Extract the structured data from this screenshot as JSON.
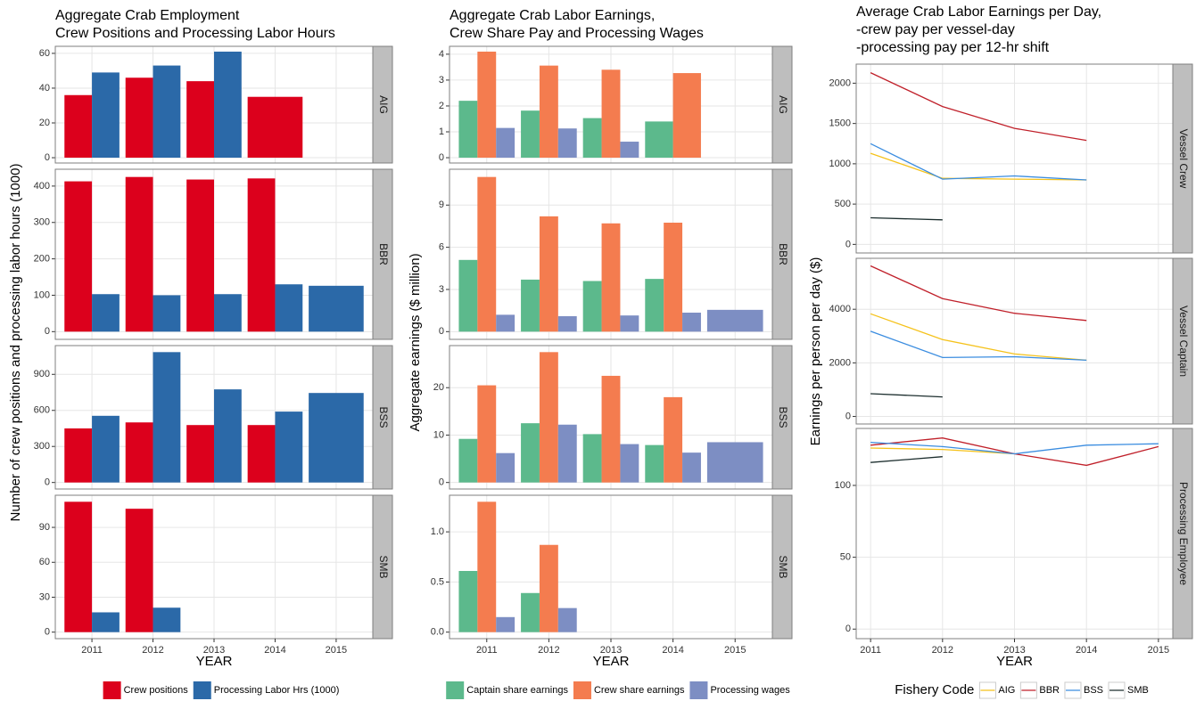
{
  "chart_data": [
    {
      "type": "bar",
      "title": [
        "Aggregate Crab Employment",
        " Crew Positions and Processing Labor Hours"
      ],
      "xlabel": "YEAR",
      "ylabel": "Number of crew positions and processing labor hours (1000)",
      "categories": [
        "2011",
        "2012",
        "2013",
        "2014",
        "2015"
      ],
      "series": [
        {
          "name": "Crew positions",
          "color": "#dc001c"
        },
        {
          "name": "Processing Labor Hrs (1000)",
          "color": "#2b69a8"
        }
      ],
      "facets": [
        {
          "label": "AIG",
          "ylim": [
            -3.05,
            64.05
          ],
          "yticks": [
            0,
            20,
            40,
            60
          ],
          "values": [
            [
              36,
              46,
              44,
              35,
              null
            ],
            [
              49,
              53,
              61,
              null,
              null
            ]
          ]
        },
        {
          "label": "BBR",
          "ylim": [
            -21.25,
            446.25
          ],
          "yticks": [
            0,
            100,
            200,
            300,
            400
          ],
          "values": [
            [
              413,
              425,
              418,
              421,
              null
            ],
            [
              103,
              100,
              103,
              130,
              126
            ]
          ]
        },
        {
          "label": "BSS",
          "ylim": [
            -54.25,
            1139.25
          ],
          "yticks": [
            0,
            300,
            600,
            900
          ],
          "values": [
            [
              450,
              500,
              478,
              478,
              null
            ],
            [
              555,
              1085,
              775,
              590,
              745
            ]
          ]
        },
        {
          "label": "SMB",
          "ylim": [
            -5.6,
            117.6
          ],
          "yticks": [
            0,
            30,
            60,
            90
          ],
          "values": [
            [
              112,
              106,
              null,
              null,
              null
            ],
            [
              17,
              21,
              null,
              null,
              null
            ]
          ]
        }
      ]
    },
    {
      "type": "bar",
      "title": [
        "Aggregate Crab Labor Earnings,",
        " Crew Share Pay and Processing Wages"
      ],
      "xlabel": "YEAR",
      "ylabel": "Aggregate earnings ($ million)",
      "categories": [
        "2011",
        "2012",
        "2013",
        "2014",
        "2015"
      ],
      "series": [
        {
          "name": "Captain share earnings",
          "color": "#5cb98c"
        },
        {
          "name": "Crew share earnings",
          "color": "#f47c4f"
        },
        {
          "name": "Processing wages",
          "color": "#7d8ec3"
        }
      ],
      "facets": [
        {
          "label": "AIG",
          "ylim": [
            -0.205,
            4.305
          ],
          "yticks": [
            0,
            1,
            2,
            3,
            4
          ],
          "values": [
            [
              2.2,
              1.82,
              1.53,
              1.4,
              null
            ],
            [
              4.1,
              3.56,
              3.4,
              3.27,
              null
            ],
            [
              1.15,
              1.13,
              0.62,
              null,
              null
            ]
          ]
        },
        {
          "label": "BBR",
          "ylim": [
            -0.55,
            11.55
          ],
          "yticks": [
            0,
            3,
            6,
            9
          ],
          "values": [
            [
              5.1,
              3.7,
              3.6,
              3.75,
              null
            ],
            [
              11,
              8.2,
              7.7,
              7.75,
              null
            ],
            [
              1.2,
              1.1,
              1.15,
              1.35,
              1.55
            ]
          ]
        },
        {
          "label": "BSS",
          "ylim": [
            -1.375,
            28.875
          ],
          "yticks": [
            0,
            10,
            20
          ],
          "values": [
            [
              9.2,
              12.5,
              10.2,
              7.9,
              null
            ],
            [
              20.5,
              27.5,
              22.5,
              18,
              null
            ],
            [
              6.2,
              12.2,
              8.1,
              6.3,
              8.5
            ]
          ]
        },
        {
          "label": "SMB",
          "ylim": [
            -0.065,
            1.365
          ],
          "yticks": [
            {
              "value": 0,
              "label": "0.0"
            },
            {
              "value": 0.5,
              "label": "0.5"
            },
            {
              "value": 1,
              "label": "1.0"
            }
          ],
          "values": [
            [
              0.61,
              0.39,
              null,
              null,
              null
            ],
            [
              1.3,
              0.87,
              null,
              null,
              null
            ],
            [
              0.15,
              0.24,
              null,
              null,
              null
            ]
          ]
        }
      ]
    },
    {
      "type": "line",
      "title": [
        "Average Crab Labor Earnings per Day,",
        " -crew pay per vessel-day",
        " -processing pay per 12-hr shift"
      ],
      "xlabel": "YEAR",
      "ylabel": "Earnings per person per day ($)",
      "legend_title": "Fishery Code",
      "x": [
        2011,
        2012,
        2013,
        2014,
        2015
      ],
      "xlim": [
        2010.8,
        2015.2
      ],
      "xticks": [
        2011,
        2012,
        2013,
        2014,
        2015
      ],
      "series": [
        {
          "name": "AIG",
          "color": "#f5c21b"
        },
        {
          "name": "BBR",
          "color": "#c0202a"
        },
        {
          "name": "BSS",
          "color": "#3b8de0"
        },
        {
          "name": "SMB",
          "color": "#1c2e2e"
        }
      ],
      "facets": [
        {
          "label": "Vessel Crew",
          "ylim": [
            -106.5,
            2236.5
          ],
          "yticks": [
            0,
            500,
            1000,
            1500,
            2000
          ],
          "values": [
            [
              1130,
              820,
              810,
              800,
              null
            ],
            [
              2130,
              1710,
              1440,
              1290,
              null
            ],
            [
              1250,
              810,
              850,
              800,
              null
            ],
            [
              330,
              305,
              null,
              null,
              null
            ]
          ]
        },
        {
          "label": "Vessel Captain",
          "ylim": [
            -281,
            5901
          ],
          "yticks": [
            0,
            2000,
            4000
          ],
          "values": [
            [
              3830,
              2870,
              2330,
              2100,
              null
            ],
            [
              5620,
              4400,
              3850,
              3580,
              null
            ],
            [
              3180,
              2200,
              2230,
              2100,
              null
            ],
            [
              850,
              730,
              null,
              null,
              null
            ]
          ]
        },
        {
          "label": "Processing Employee",
          "ylim": [
            -6.65,
            139.65
          ],
          "yticks": [
            0,
            50,
            100
          ],
          "values": [
            [
              126,
              125,
              122,
              null,
              null
            ],
            [
              128,
              133,
              122,
              114,
              127
            ],
            [
              130,
              127,
              122,
              128,
              129
            ],
            [
              116,
              120,
              null,
              null,
              null
            ]
          ]
        }
      ]
    }
  ]
}
